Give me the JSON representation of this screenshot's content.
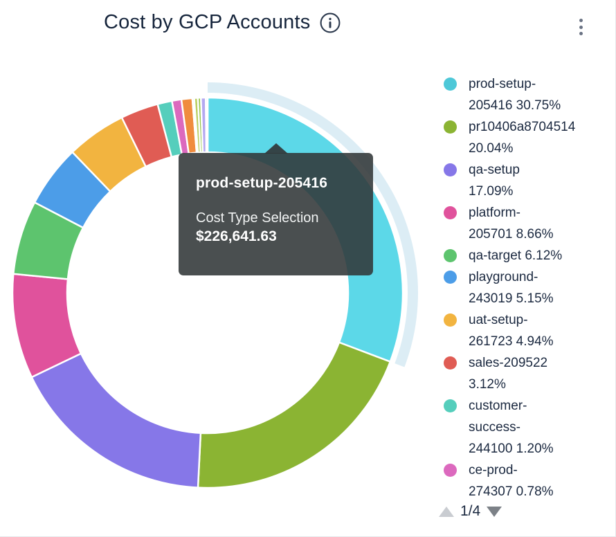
{
  "header": {
    "title": "Cost by GCP Accounts"
  },
  "chart_data": {
    "type": "pie",
    "subtype": "donut",
    "title": "Cost by GCP Accounts",
    "unit": "percent",
    "start_angle_deg_clockwise_from_top": 0,
    "highlighted_segment": "prod-setup-205416",
    "series": [
      {
        "name": "prod-setup-205416",
        "percent": 30.75,
        "color": "#4EC8D8",
        "highlight_color": "#5CD8E8",
        "legend_visible": true
      },
      {
        "name": "pr10406a8704514",
        "percent": 20.04,
        "color": "#8BB433",
        "legend_visible": true
      },
      {
        "name": "qa-setup",
        "percent": 17.09,
        "color": "#8677E8",
        "legend_visible": true
      },
      {
        "name": "platform-205701",
        "percent": 8.66,
        "color": "#E0529C",
        "legend_visible": true
      },
      {
        "name": "qa-target",
        "percent": 6.12,
        "color": "#5DC46E",
        "legend_visible": true
      },
      {
        "name": "playground-243019",
        "percent": 5.15,
        "color": "#4C9DE8",
        "legend_visible": true
      },
      {
        "name": "uat-setup-261723",
        "percent": 4.94,
        "color": "#F2B440",
        "legend_visible": true
      },
      {
        "name": "sales-209522",
        "percent": 3.12,
        "color": "#E05C54",
        "legend_visible": true
      },
      {
        "name": "customer-success-244100",
        "percent": 1.2,
        "color": "#55CEBC",
        "legend_visible": true
      },
      {
        "name": "ce-prod-274307",
        "percent": 0.78,
        "color": "#DC69BE",
        "legend_visible": true
      },
      {
        "name": "",
        "percent": 0.9,
        "color": "#F08C3E",
        "legend_visible": false
      },
      {
        "name": "",
        "percent": 0.15,
        "color": "#9BD5E2",
        "legend_visible": false
      },
      {
        "name": "",
        "percent": 0.3,
        "color": "#BACE62",
        "legend_visible": false
      },
      {
        "name": "",
        "percent": 0.25,
        "color": "#93C545",
        "legend_visible": false
      },
      {
        "name": "",
        "percent": 0.4,
        "color": "#B4A8F0",
        "legend_visible": false
      },
      {
        "name": "",
        "percent": 0.15,
        "color": "#CFC6F2",
        "legend_visible": false
      }
    ],
    "halo_color": "#DCEDF5",
    "segment_border_color": "#ffffff",
    "legend_position": "right"
  },
  "tooltip": {
    "title": "prod-setup-205416",
    "label": "Cost Type Selection",
    "value": "$226,641.63"
  },
  "legend": {
    "items": [
      {
        "color": "#4EC8D8",
        "display": "prod-setup-\n205416 30.75%"
      },
      {
        "color": "#8BB433",
        "display": "pr10406a8704514\n20.04%"
      },
      {
        "color": "#8677E8",
        "display": "qa-setup\n17.09%"
      },
      {
        "color": "#E0529C",
        "display": "platform-\n205701 8.66%"
      },
      {
        "color": "#5DC46E",
        "display": "qa-target 6.12%"
      },
      {
        "color": "#4C9DE8",
        "display": "playground-\n243019 5.15%"
      },
      {
        "color": "#F2B440",
        "display": "uat-setup-\n261723 4.94%"
      },
      {
        "color": "#E05C54",
        "display": "sales-209522\n3.12%"
      },
      {
        "color": "#55CEBC",
        "display": "customer-\nsuccess-\n244100 1.20%"
      },
      {
        "color": "#DC69BE",
        "display": "ce-prod-\n274307 0.78%"
      }
    ]
  },
  "pagination": {
    "label": "1/4"
  }
}
